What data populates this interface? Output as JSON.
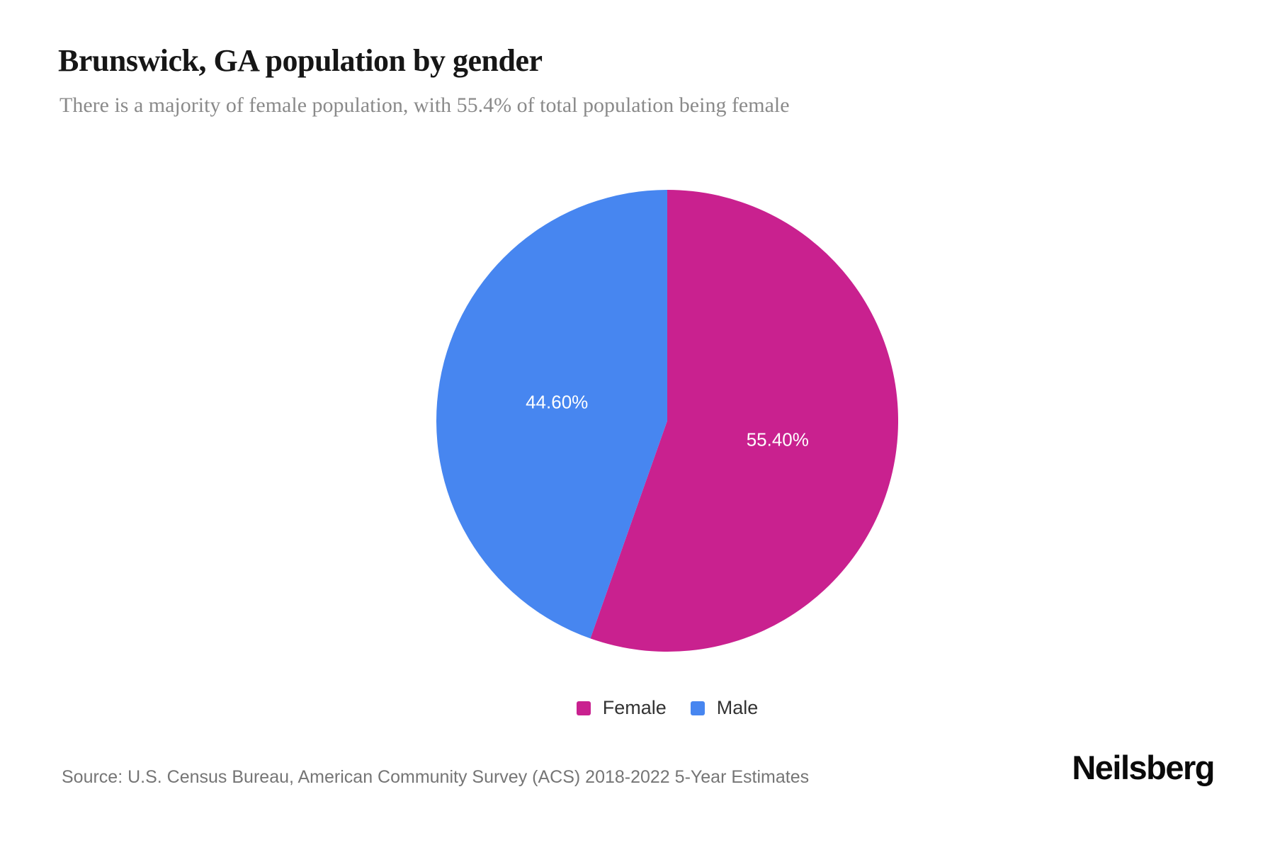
{
  "header": {
    "title": "Brunswick, GA population by gender",
    "subtitle": "There is a majority of female population, with 55.4% of total population being female"
  },
  "chart_data": {
    "type": "pie",
    "title": "Brunswick, GA population by gender",
    "categories": [
      "Female",
      "Male"
    ],
    "values": [
      55.4,
      44.6
    ],
    "slice_labels": [
      "55.40%",
      "44.60%"
    ],
    "colors": [
      "#C9218F",
      "#4786F0"
    ],
    "start_angle_deg": 0,
    "direction": "clockwise",
    "legend_position": "bottom",
    "slice_label_color": "#ffffff"
  },
  "legend": {
    "items": [
      {
        "label": "Female",
        "color": "#C9218F"
      },
      {
        "label": "Male",
        "color": "#4786F0"
      }
    ]
  },
  "footer": {
    "source": "Source: U.S. Census Bureau, American Community Survey (ACS) 2018-2022 5-Year Estimates",
    "brand": "Neilsberg"
  }
}
